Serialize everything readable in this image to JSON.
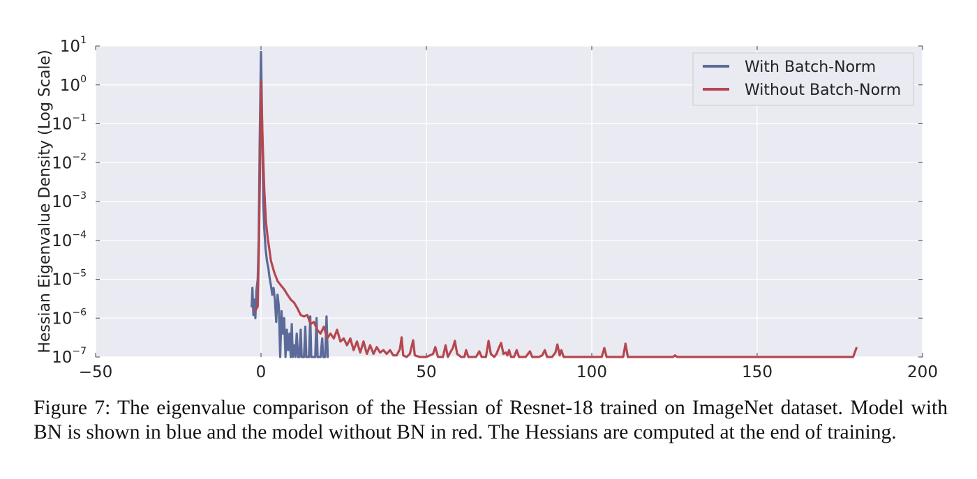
{
  "chart_data": {
    "type": "line",
    "xlabel": "",
    "ylabel": "Hessian Eigenvalue Density (Log Scale)",
    "xlim": [
      -50,
      200
    ],
    "ylim": [
      1e-07,
      10
    ],
    "yscale": "log",
    "x_ticks": [
      "−50",
      "0",
      "50",
      "100",
      "150",
      "200"
    ],
    "y_ticks": [
      {
        "base": "10",
        "exp": "−7"
      },
      {
        "base": "10",
        "exp": "−6"
      },
      {
        "base": "10",
        "exp": "−5"
      },
      {
        "base": "10",
        "exp": "−4"
      },
      {
        "base": "10",
        "exp": "−3"
      },
      {
        "base": "10",
        "exp": "−2"
      },
      {
        "base": "10",
        "exp": "−1"
      },
      {
        "base": "10",
        "exp": "0"
      },
      {
        "base": "10",
        "exp": "1"
      }
    ],
    "grid": true,
    "legend_position": "top-right",
    "series": [
      {
        "name": "With Batch-Norm",
        "color": "#5b6a98",
        "points": [
          [
            -2.8,
            2e-06
          ],
          [
            -2.6,
            6e-06
          ],
          [
            -2.3,
            1.2e-06
          ],
          [
            -2.0,
            3e-06
          ],
          [
            -1.7,
            1e-06
          ],
          [
            -1.4,
            5e-06
          ],
          [
            -1.0,
            1e-05
          ],
          [
            -0.7,
            0.0001
          ],
          [
            -0.4,
            0.03
          ],
          [
            -0.15,
            1.0
          ],
          [
            0.0,
            7.0
          ],
          [
            0.15,
            1.2
          ],
          [
            0.4,
            0.05
          ],
          [
            0.7,
            0.001
          ],
          [
            1.0,
            0.0002
          ],
          [
            1.4,
            6e-05
          ],
          [
            1.8,
            3e-05
          ],
          [
            2.2,
            2e-05
          ],
          [
            2.6,
            1.1e-05
          ],
          [
            3.0,
            7e-06
          ],
          [
            3.4,
            4e-06
          ],
          [
            3.8,
            6e-06
          ],
          [
            4.2,
            3e-06
          ],
          [
            4.6,
            8e-07
          ],
          [
            5.0,
            4e-06
          ],
          [
            5.4,
            2e-06
          ],
          [
            5.8,
            1e-07
          ],
          [
            6.2,
            1.5e-06
          ],
          [
            6.6,
            4e-07
          ],
          [
            7.0,
            1e-06
          ],
          [
            7.4,
            1e-07
          ],
          [
            7.8,
            5e-07
          ],
          [
            8.2,
            1.5e-07
          ],
          [
            8.6,
            4e-07
          ],
          [
            9.0,
            1e-07
          ],
          [
            9.3,
            7e-07
          ],
          [
            9.6,
            1e-07
          ],
          [
            10.0,
            2e-07
          ],
          [
            10.4,
            1e-07
          ],
          [
            10.8,
            4e-07
          ],
          [
            11.2,
            1e-07
          ],
          [
            11.6,
            1e-07
          ],
          [
            12.0,
            5e-07
          ],
          [
            12.3,
            1e-07
          ],
          [
            13.0,
            1e-07
          ],
          [
            13.4,
            6e-07
          ],
          [
            13.7,
            1e-07
          ],
          [
            14.5,
            1e-07
          ],
          [
            14.9,
            1.1e-06
          ],
          [
            15.2,
            1e-07
          ],
          [
            16.0,
            1e-07
          ],
          [
            16.4,
            1e-07
          ],
          [
            16.8,
            1e-06
          ],
          [
            17.1,
            1e-07
          ],
          [
            18.0,
            1e-07
          ],
          [
            18.5,
            3e-07
          ],
          [
            18.8,
            1e-07
          ],
          [
            19.4,
            1e-07
          ],
          [
            19.8,
            1.1e-06
          ],
          [
            20.2,
            1e-07
          ]
        ]
      },
      {
        "name": "Without Batch-Norm",
        "color": "#b5474f",
        "points": [
          [
            -1.8,
            1.5e-06
          ],
          [
            -1.0,
            2e-06
          ],
          [
            -0.6,
            0.0001
          ],
          [
            -0.3,
            0.008
          ],
          [
            0.0,
            1.2
          ],
          [
            0.3,
            0.15
          ],
          [
            0.6,
            0.02
          ],
          [
            1.0,
            0.002
          ],
          [
            1.5,
            0.0003
          ],
          [
            2.0,
            0.00012
          ],
          [
            2.5,
            6e-05
          ],
          [
            3.0,
            3e-05
          ],
          [
            4.0,
            1.5e-05
          ],
          [
            5.0,
            9e-06
          ],
          [
            6.0,
            7e-06
          ],
          [
            7.0,
            5.5e-06
          ],
          [
            8.0,
            4e-06
          ],
          [
            9.0,
            3e-06
          ],
          [
            10.0,
            2.5e-06
          ],
          [
            11.0,
            1.8e-06
          ],
          [
            12.0,
            1.2e-06
          ],
          [
            13.0,
            1.1e-06
          ],
          [
            14.0,
            1.2e-06
          ],
          [
            15.0,
            7e-07
          ],
          [
            16.0,
            8e-07
          ],
          [
            17.0,
            5e-07
          ],
          [
            18.0,
            4e-07
          ],
          [
            19.0,
            6e-07
          ],
          [
            20.0,
            3e-07
          ],
          [
            21.0,
            4e-07
          ],
          [
            22.0,
            3e-07
          ],
          [
            23.0,
            5e-07
          ],
          [
            24.0,
            2.5e-07
          ],
          [
            25.0,
            3e-07
          ],
          [
            26.0,
            2e-07
          ],
          [
            27.0,
            3e-07
          ],
          [
            28.0,
            1.5e-07
          ],
          [
            29.0,
            2.5e-07
          ],
          [
            30.0,
            1.3e-07
          ],
          [
            31.0,
            2.5e-07
          ],
          [
            32.0,
            1.2e-07
          ],
          [
            33.0,
            2e-07
          ],
          [
            34.0,
            1.2e-07
          ],
          [
            35.0,
            1.8e-07
          ],
          [
            36.0,
            1.3e-07
          ],
          [
            37.0,
            1.5e-07
          ],
          [
            38.0,
            1.2e-07
          ],
          [
            39.0,
            1.5e-07
          ],
          [
            40.0,
            1.1e-07
          ],
          [
            41.0,
            1.1e-07
          ],
          [
            42.0,
            1.6e-07
          ],
          [
            42.5,
            3.2e-07
          ],
          [
            43.0,
            1.1e-07
          ],
          [
            44.0,
            1e-07
          ],
          [
            45.0,
            1.2e-07
          ],
          [
            46.0,
            2.7e-07
          ],
          [
            46.5,
            1.1e-07
          ],
          [
            48.0,
            1e-07
          ],
          [
            50.0,
            1e-07
          ],
          [
            52.0,
            1.2e-07
          ],
          [
            52.7,
            1.8e-07
          ],
          [
            53.5,
            1e-07
          ],
          [
            55.0,
            1e-07
          ],
          [
            55.8,
            2e-07
          ],
          [
            56.5,
            1e-07
          ],
          [
            57.2,
            1.3e-07
          ],
          [
            58.0,
            1.7e-07
          ],
          [
            58.6,
            2.6e-07
          ],
          [
            59.3,
            1.2e-07
          ],
          [
            60.5,
            1e-07
          ],
          [
            61.5,
            1e-07
          ],
          [
            62.0,
            1.5e-07
          ],
          [
            62.7,
            1e-07
          ],
          [
            64.0,
            1e-07
          ],
          [
            65.0,
            1e-07
          ],
          [
            66.0,
            1.4e-07
          ],
          [
            66.7,
            1e-07
          ],
          [
            68.0,
            1e-07
          ],
          [
            68.8,
            2.6e-07
          ],
          [
            69.5,
            1.2e-07
          ],
          [
            70.5,
            1e-07
          ],
          [
            71.2,
            1.2e-07
          ],
          [
            72.0,
            1.8e-07
          ],
          [
            72.6,
            2.3e-07
          ],
          [
            73.3,
            1.2e-07
          ],
          [
            74.0,
            1.3e-07
          ],
          [
            74.5,
            1.1e-07
          ],
          [
            75.0,
            1.5e-07
          ],
          [
            75.6,
            1e-07
          ],
          [
            76.5,
            1e-07
          ],
          [
            77.3,
            1.5e-07
          ],
          [
            78.0,
            1e-07
          ],
          [
            80.0,
            1e-07
          ],
          [
            81.3,
            1.4e-07
          ],
          [
            82.0,
            1e-07
          ],
          [
            84.0,
            1e-07
          ],
          [
            85.0,
            1.1e-07
          ],
          [
            85.8,
            1.5e-07
          ],
          [
            86.5,
            1e-07
          ],
          [
            88.0,
            1e-07
          ],
          [
            89.0,
            1.3e-07
          ],
          [
            89.6,
            2.1e-07
          ],
          [
            90.3,
            1.1e-07
          ],
          [
            90.8,
            1.5e-07
          ],
          [
            91.5,
            1e-07
          ],
          [
            95.0,
            1e-07
          ],
          [
            100.0,
            1e-07
          ],
          [
            103.0,
            1e-07
          ],
          [
            103.8,
            1.7e-07
          ],
          [
            104.5,
            1e-07
          ],
          [
            108.0,
            1e-07
          ],
          [
            109.5,
            1e-07
          ],
          [
            110.2,
            2.2e-07
          ],
          [
            110.9,
            1e-07
          ],
          [
            115.0,
            1e-07
          ],
          [
            120.0,
            1e-07
          ],
          [
            124.5,
            1e-07
          ],
          [
            125.2,
            1.1e-07
          ],
          [
            125.8,
            1e-07
          ],
          [
            130.0,
            1e-07
          ],
          [
            150.0,
            1e-07
          ],
          [
            170.0,
            1e-07
          ],
          [
            179.0,
            1e-07
          ],
          [
            180.0,
            1.7e-07
          ]
        ]
      }
    ]
  },
  "caption": {
    "text": "Figure 7: The eigenvalue comparison of the Hessian of Resnet-18 trained on ImageNet dataset. Model with BN is shown in blue and the model without BN in red. The Hessians are computed at the end of training."
  }
}
